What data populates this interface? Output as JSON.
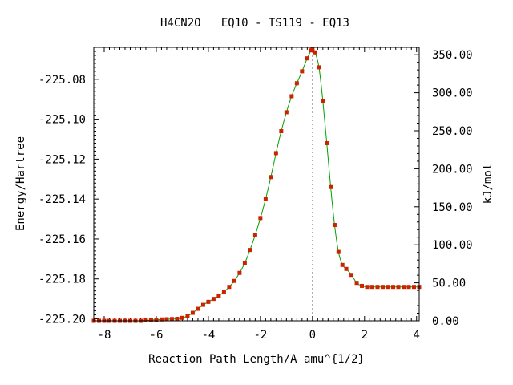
{
  "chart_data": {
    "type": "scatter",
    "title": "H4CN2O   EQ10 - TS119 - EQ13",
    "xlabel": "Reaction Path Length/A amu^{1/2}",
    "ylabel": "Energy/Hartree",
    "y2label": "kJ/mol",
    "xlim": [
      -8.4,
      4.1
    ],
    "ylim": [
      -225.201,
      -225.064
    ],
    "y2lim": [
      0,
      359.7
    ],
    "xticks": [
      -8,
      -6,
      -4,
      -2,
      0,
      2,
      4
    ],
    "xtick_labels": [
      "-8",
      "-6",
      "-4",
      "-2",
      "0",
      "2",
      "4"
    ],
    "yticks": [
      -225.2,
      -225.18,
      -225.16,
      -225.14,
      -225.12,
      -225.1,
      -225.08
    ],
    "ytick_labels": [
      "-225.20",
      "-225.18",
      "-225.16",
      "-225.14",
      "-225.12",
      "-225.10",
      "-225.08"
    ],
    "y2ticks": [
      0,
      50,
      100,
      150,
      200,
      250,
      300,
      350
    ],
    "y2tick_labels": [
      "0.00",
      "50.00",
      "100.00",
      "150.00",
      "200.00",
      "250.00",
      "300.00",
      "350.00"
    ],
    "ts_marker_x": 0,
    "line_color": "#00a000",
    "point_color": "#cc2200",
    "series": [
      {
        "x": [
          -8.4,
          -8.2,
          -8.0,
          -7.8,
          -7.6,
          -7.4,
          -7.2,
          -7.0,
          -6.8,
          -6.6,
          -6.4,
          -6.2,
          -6.0,
          -5.8,
          -5.6,
          -5.4,
          -5.2,
          -5.0,
          -4.8,
          -4.6,
          -4.4,
          -4.2,
          -4.0,
          -3.8,
          -3.6,
          -3.4,
          -3.2,
          -3.0,
          -2.8,
          -2.6,
          -2.4,
          -2.2,
          -2.0,
          -1.8,
          -1.6,
          -1.4,
          -1.2,
          -1.0,
          -0.8,
          -0.6,
          -0.4,
          -0.2,
          -0.05,
          0.0,
          0.1,
          0.25,
          0.4,
          0.55,
          0.7,
          0.85,
          1.0,
          1.15,
          1.3,
          1.5,
          1.7,
          1.9,
          2.1,
          2.3,
          2.5,
          2.7,
          2.9,
          3.1,
          3.3,
          3.5,
          3.7,
          3.9,
          4.1
        ],
        "y": [
          -225.201,
          -225.201,
          -225.201,
          -225.201,
          -225.201,
          -225.201,
          -225.201,
          -225.201,
          -225.201,
          -225.201,
          -225.2008,
          -225.2006,
          -225.2004,
          -225.2003,
          -225.2002,
          -225.2001,
          -225.2,
          -225.1995,
          -225.1985,
          -225.197,
          -225.195,
          -225.193,
          -225.1915,
          -225.19,
          -225.1885,
          -225.1865,
          -225.184,
          -225.181,
          -225.177,
          -225.172,
          -225.1655,
          -225.158,
          -225.1495,
          -225.14,
          -225.129,
          -225.117,
          -225.106,
          -225.0965,
          -225.0885,
          -225.082,
          -225.076,
          -225.0695,
          -225.0655,
          -225.065,
          -225.0665,
          -225.074,
          -225.091,
          -225.112,
          -225.134,
          -225.153,
          -225.1665,
          -225.173,
          -225.175,
          -225.178,
          -225.182,
          -225.1835,
          -225.184,
          -225.184,
          -225.184,
          -225.184,
          -225.184,
          -225.184,
          -225.184,
          -225.184,
          -225.184,
          -225.184,
          -225.184
        ]
      }
    ]
  }
}
